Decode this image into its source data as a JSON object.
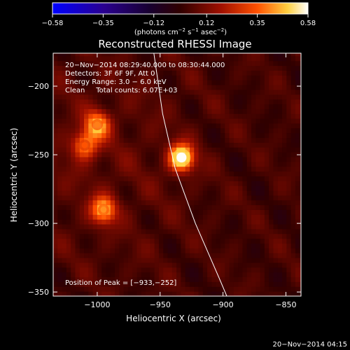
{
  "chart_data": {
    "type": "heatmap",
    "title": "Reconstructed RHESSI Image",
    "xlabel": "Heliocentric X (arcsec)",
    "ylabel": "Heliocentric Y (arcsec)",
    "xlim": [
      -1035,
      -838
    ],
    "ylim": [
      -353,
      -176
    ],
    "x_ticks": [
      -1000,
      -950,
      -900,
      -850
    ],
    "y_ticks": [
      -200,
      -250,
      -300,
      -350
    ],
    "x_tick_labels": [
      "−1000",
      "−950",
      "−900",
      "−850"
    ],
    "y_tick_labels": [
      "−200",
      "−250",
      "−300",
      "−350"
    ],
    "colorbar": {
      "range": [
        -0.58,
        0.58
      ],
      "ticks": [
        -0.58,
        -0.35,
        -0.12,
        0.12,
        0.35,
        0.58
      ],
      "tick_labels": [
        "−0.58",
        "−0.35",
        "−0.12",
        "0.12",
        "0.35",
        "0.58"
      ],
      "colors": [
        "#0000ff",
        "#2a0090",
        "#180030",
        "#300000",
        "#a01000",
        "#ff5000",
        "#ffd040",
        "#ffffff"
      ],
      "unit_prefix": "(photons cm",
      "unit_sup1": "−2",
      "unit_mid": " s",
      "unit_sup2": "−1",
      "unit_post": " asec",
      "unit_sup3": "−2",
      "unit_suffix": ")"
    },
    "annotations": [
      "20−Nov−2014 08:29:40.000 to 08:30:44.000",
      "Detectors: 3F 6F 9F, Att 0",
      "Energy Range: 3.0 − 6.0 keV",
      "Clean     Total counts: 6.07E+03"
    ],
    "peak_label": "Position of Peak = [−933,−252]",
    "peak": [
      -933,
      -252
    ],
    "sources": [
      {
        "x": -933,
        "y": -252,
        "value": 0.58
      },
      {
        "x": -1000,
        "y": -228,
        "value": 0.4
      },
      {
        "x": -1010,
        "y": -243,
        "value": 0.35
      },
      {
        "x": -995,
        "y": -290,
        "value": 0.42
      }
    ],
    "limb": [
      [
        -955,
        -176
      ],
      [
        -948,
        -220
      ],
      [
        -938,
        -260
      ],
      [
        -922,
        -300
      ],
      [
        -903,
        -340
      ],
      [
        -897,
        -353
      ]
    ]
  },
  "footer_timestamp": "20−Nov−2014 04:15"
}
